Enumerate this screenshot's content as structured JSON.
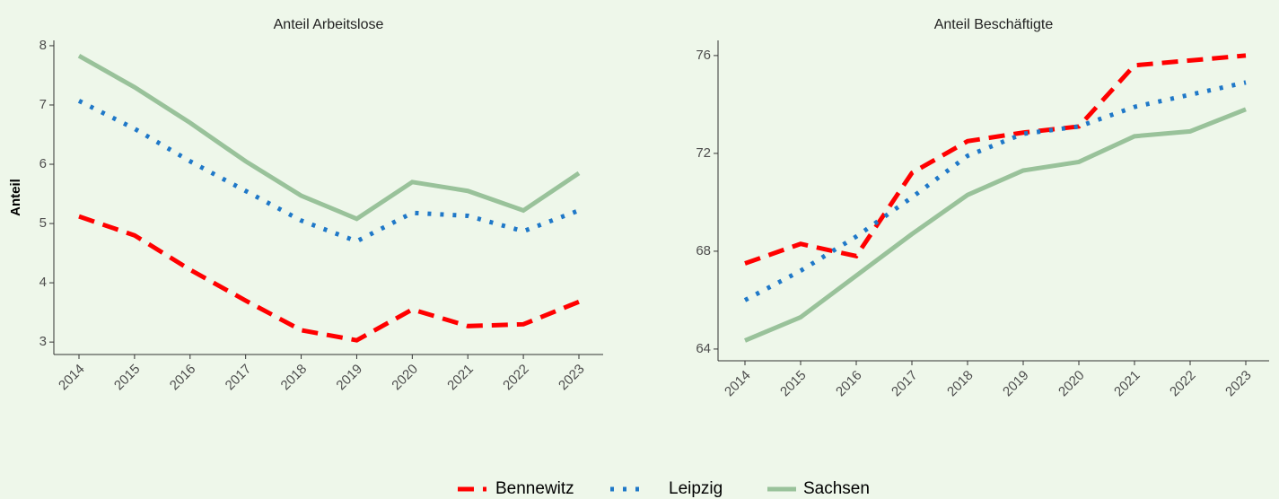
{
  "chart_data": [
    {
      "type": "line",
      "title": "Anteil Arbeitslose",
      "y_label": "Anteil",
      "categories": [
        "2014",
        "2015",
        "2016",
        "2017",
        "2018",
        "2019",
        "2020",
        "2021",
        "2022",
        "2023"
      ],
      "ylim": [
        2.79,
        8.09
      ],
      "yticks": [
        3,
        4,
        5,
        6,
        7,
        8
      ],
      "series": [
        {
          "name": "Bennewitz",
          "color": "#ff0000",
          "dash": "dashed",
          "values": [
            5.12,
            4.8,
            4.22,
            3.7,
            3.2,
            3.03,
            3.55,
            3.27,
            3.3,
            3.68
          ]
        },
        {
          "name": "Leipzig",
          "color": "#1f78c8",
          "dash": "dotted",
          "values": [
            7.07,
            6.6,
            6.05,
            5.55,
            5.05,
            4.7,
            5.18,
            5.13,
            4.87,
            5.22
          ]
        },
        {
          "name": "Sachsen",
          "color": "#99c29a",
          "dash": "solid",
          "values": [
            7.83,
            7.3,
            6.7,
            6.05,
            5.47,
            5.08,
            5.7,
            5.55,
            5.22,
            5.85
          ]
        }
      ]
    },
    {
      "type": "line",
      "title": "Anteil Beschäftigte",
      "categories": [
        "2014",
        "2015",
        "2016",
        "2017",
        "2018",
        "2019",
        "2020",
        "2021",
        "2022",
        "2023"
      ],
      "ylim": [
        63.52,
        76.62
      ],
      "yticks": [
        64,
        68,
        72,
        76
      ],
      "series": [
        {
          "color": "#ff0000",
          "dash": "dashed",
          "values": [
            67.5,
            68.3,
            67.8,
            71.2,
            72.5,
            72.85,
            73.1,
            75.6,
            75.8,
            76.0
          ]
        },
        {
          "color": "#1f78c8",
          "dash": "dotted",
          "values": [
            66.0,
            67.2,
            68.6,
            70.2,
            71.9,
            72.8,
            73.1,
            73.9,
            74.4,
            74.9
          ]
        },
        {
          "color": "#99c29a",
          "dash": "solid",
          "values": [
            64.35,
            65.3,
            67.0,
            68.7,
            70.3,
            71.3,
            71.65,
            72.7,
            72.9,
            73.8
          ]
        }
      ]
    }
  ]
}
